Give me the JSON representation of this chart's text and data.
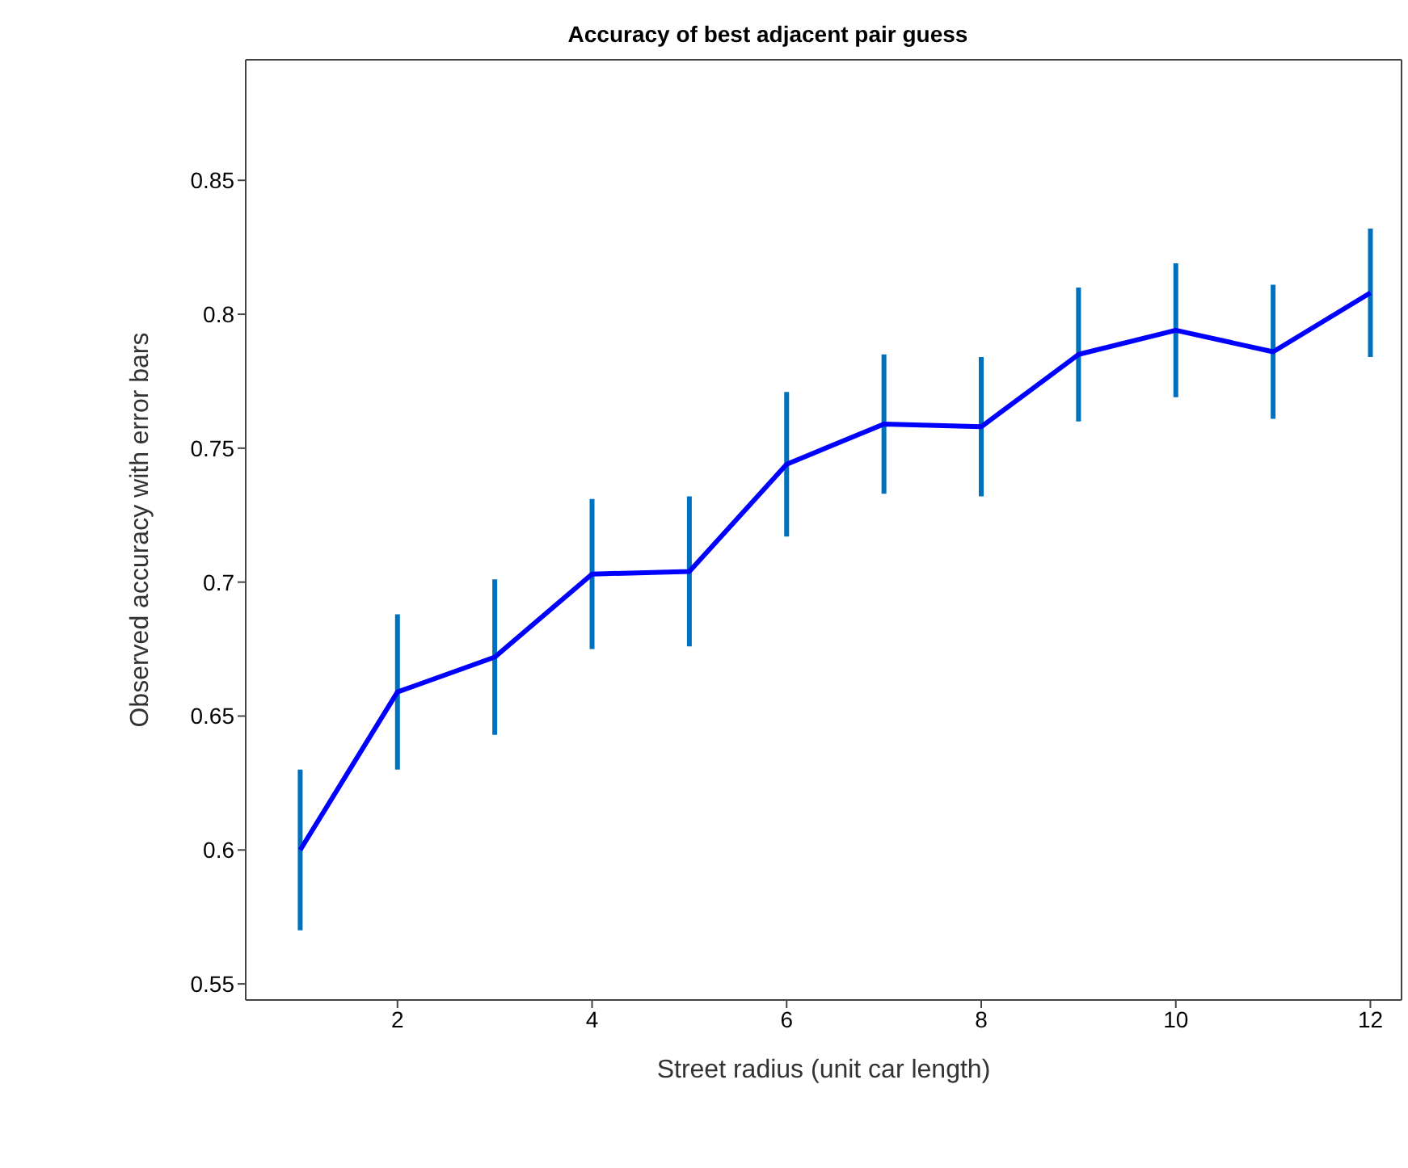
{
  "chart_data": {
    "type": "line",
    "title": "Accuracy of best adjacent pair guess",
    "xlabel": "Street radius (unit car length)",
    "ylabel": "Observed accuracy with error bars",
    "x": [
      1,
      2,
      3,
      4,
      5,
      6,
      7,
      8,
      9,
      10,
      11,
      12
    ],
    "series": [
      {
        "color": "#0000ff",
        "values": [
          0.6,
          0.659,
          0.672,
          0.703,
          0.704,
          0.744,
          0.759,
          0.758,
          0.785,
          0.794,
          0.786,
          0.808
        ],
        "errors": [
          0.03,
          0.029,
          0.029,
          0.028,
          0.028,
          0.027,
          0.026,
          0.026,
          0.025,
          0.025,
          0.025,
          0.024
        ]
      }
    ],
    "xlim": [
      0.44,
      12.32
    ],
    "xticks": [
      2,
      4,
      6,
      8,
      10,
      12
    ],
    "ylim": [
      0.544,
      0.895
    ],
    "yticks": [
      0.55,
      0.6,
      0.65,
      0.7,
      0.75,
      0.8,
      0.85
    ],
    "grid": false,
    "marker": "none",
    "line_style": "solid"
  }
}
